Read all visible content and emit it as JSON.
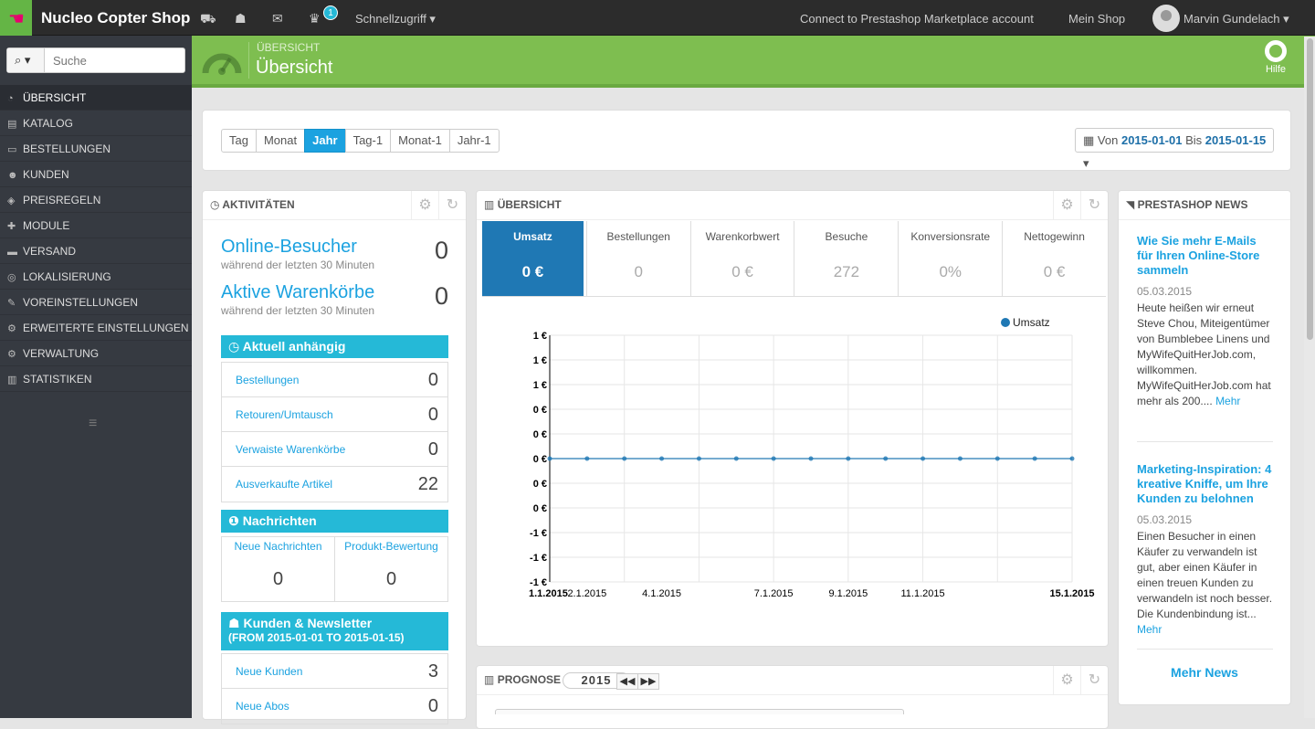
{
  "topbar": {
    "shop_name": "Nucleo Copter Shop",
    "notification_count": "1",
    "quick_access": "Schnellzugriff ▾",
    "connect": "Connect to Prestashop Marketplace account",
    "my_shop": "Mein Shop",
    "user": "Marvin Gundelach ▾"
  },
  "search": {
    "placeholder": "Suche",
    "button": "⌕ ▾"
  },
  "menu": [
    {
      "label": "ÜBERSICHT",
      "icon": "dashboard-icon",
      "glyph": "◔"
    },
    {
      "label": "KATALOG",
      "icon": "book-icon",
      "glyph": "▤"
    },
    {
      "label": "BESTELLUNGEN",
      "icon": "credit-card-icon",
      "glyph": "▭"
    },
    {
      "label": "KUNDEN",
      "icon": "users-icon",
      "glyph": "☻"
    },
    {
      "label": "PREISREGELN",
      "icon": "tags-icon",
      "glyph": "◈"
    },
    {
      "label": "MODULE",
      "icon": "puzzle-icon",
      "glyph": "✚"
    },
    {
      "label": "VERSAND",
      "icon": "truck-icon",
      "glyph": "▬"
    },
    {
      "label": "LOKALISIERUNG",
      "icon": "globe-icon",
      "glyph": "◎"
    },
    {
      "label": "VOREINSTELLUNGEN",
      "icon": "wrench-icon",
      "glyph": "✎"
    },
    {
      "label": "ERWEITERTE EINSTELLUNGEN",
      "icon": "cogs-icon",
      "glyph": "⚙"
    },
    {
      "label": "VERWALTUNG",
      "icon": "cog-icon",
      "glyph": "⚙"
    },
    {
      "label": "STATISTIKEN",
      "icon": "bar-chart-icon",
      "glyph": "▥"
    }
  ],
  "header": {
    "breadcrumb": "ÜBERSICHT",
    "title": "Übersicht",
    "help": "Hilfe"
  },
  "filter": {
    "buttons": [
      "Tag",
      "Monat",
      "Jahr",
      "Tag-1",
      "Monat-1",
      "Jahr-1"
    ],
    "active": "Jahr",
    "date_prefix": "Von",
    "date_from": "2015-01-01",
    "date_mid": "Bis",
    "date_to": "2015-01-15"
  },
  "activity": {
    "title": "AKTIVITÄTEN",
    "online_label": "Online-Besucher",
    "online_sub": "während der letzten 30 Minuten",
    "online_value": "0",
    "carts_label": "Aktive Warenkörbe",
    "carts_sub": "während der letzten 30 Minuten",
    "carts_value": "0",
    "pending_title": "Aktuell anhängig",
    "pending": [
      {
        "label": "Bestellungen",
        "value": "0"
      },
      {
        "label": "Retouren/Umtausch",
        "value": "0"
      },
      {
        "label": "Verwaiste Warenkörbe",
        "value": "0"
      },
      {
        "label": "Ausverkaufte Artikel",
        "value": "22"
      }
    ],
    "messages_title": "Nachrichten",
    "new_messages": "Neue Nachrichten",
    "new_messages_value": "0",
    "reviews": "Produkt-Bewertung",
    "reviews_value": "0",
    "customers_title": "Kunden & Newsletter",
    "customers_sub": "(FROM 2015-01-01 TO 2015-01-15)",
    "customers": [
      {
        "label": "Neue Kunden",
        "value": "3"
      },
      {
        "label": "Neue Abos",
        "value": "0"
      }
    ]
  },
  "overview": {
    "title": "ÜBERSICHT",
    "kpis": [
      {
        "label": "Umsatz",
        "value": "0 €"
      },
      {
        "label": "Bestellungen",
        "value": "0"
      },
      {
        "label": "Warenkorbwert",
        "value": "0 €"
      },
      {
        "label": "Besuche",
        "value": "272"
      },
      {
        "label": "Konversionsrate",
        "value": "0%"
      },
      {
        "label": "Nettogewinn",
        "value": "0 €"
      }
    ]
  },
  "forecast": {
    "title": "PROGNOSE",
    "year": "2015"
  },
  "news": {
    "title": "PRESTASHOP NEWS",
    "items": [
      {
        "title": "Wie Sie mehr E-Mails für Ihren Online-Store sammeln",
        "date": "05.03.2015",
        "text": "Heute heißen wir erneut Steve Chou, Miteigentümer von Bumblebee Linens und MyWifeQuitHerJob.com, willkommen. MyWifeQuitHerJob.com hat mehr als 200....",
        "more": "Mehr"
      },
      {
        "title": "Marketing-Inspiration: 4 kreative Kniffe, um Ihre Kunden zu belohnen",
        "date": "05.03.2015",
        "text": "Einen Besucher in einen Käufer zu verwandeln ist gut, aber einen Käufer in einen treuen Kunden zu verwandeln ist noch besser. Die Kundenbindung ist...",
        "more": "Mehr"
      }
    ],
    "more_news": "Mehr News"
  },
  "chart_data": {
    "type": "line",
    "title": "",
    "legend": "top-right",
    "series": [
      {
        "name": "Umsatz",
        "color": "#1f78b4",
        "values": [
          0,
          0,
          0,
          0,
          0,
          0,
          0,
          0,
          0,
          0,
          0,
          0,
          0,
          0,
          0
        ]
      }
    ],
    "x": [
      "1.1.2015",
      "2.1.2015",
      "3.1.2015",
      "4.1.2015",
      "5.1.2015",
      "6.1.2015",
      "7.1.2015",
      "8.1.2015",
      "9.1.2015",
      "10.1.2015",
      "11.1.2015",
      "12.1.2015",
      "13.1.2015",
      "14.1.2015",
      "15.1.2015"
    ],
    "x_tick_labels": [
      "1.1.2015",
      "2.1.2015",
      "4.1.2015",
      "7.1.2015",
      "9.1.2015",
      "11.1.2015",
      "15.1.2015"
    ],
    "y_tick_labels": [
      "1 €",
      "1 €",
      "1 €",
      "0 €",
      "0 €",
      "0 €",
      "0 €",
      "0 €",
      "-1 €",
      "-1 €",
      "-1 €"
    ],
    "ylim": [
      -1,
      1
    ]
  }
}
